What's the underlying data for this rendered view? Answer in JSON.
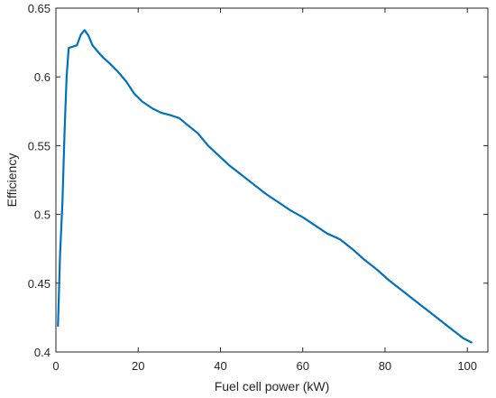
{
  "chart_data": {
    "type": "line",
    "title": "",
    "xlabel": "Fuel cell power (kW)",
    "ylabel": "Efficiency",
    "xlim": [
      0,
      105
    ],
    "ylim": [
      0.4,
      0.65
    ],
    "xticks": [
      0,
      20,
      40,
      60,
      80,
      100
    ],
    "yticks": [
      0.4,
      0.45,
      0.5,
      0.55,
      0.6,
      0.65
    ],
    "xtick_labels": [
      "0",
      "20",
      "40",
      "60",
      "80",
      "100"
    ],
    "ytick_labels": [
      "0.4",
      "0.45",
      "0.5",
      "0.55",
      "0.6",
      "0.65"
    ],
    "grid": false,
    "box": true,
    "line_color": "#0072BD",
    "series": [
      {
        "x": [
          0.5,
          1.0,
          1.6,
          2.1,
          2.6,
          3.1,
          4.1,
          5.1,
          6.1,
          7.0,
          7.9,
          8.9,
          10.0,
          11.5,
          13.0,
          15.0,
          17.0,
          19.0,
          21.0,
          23.5,
          25.5,
          28.0,
          30.0,
          32.0,
          34.5,
          37.0,
          39.5,
          42.0,
          45.0,
          48.0,
          51.0,
          54.0,
          57.0,
          60.0,
          63.0,
          66.0,
          69.0,
          72.0,
          75.0,
          78.0,
          81.0,
          84.0,
          87.0,
          90.0,
          93.0,
          96.0,
          99.0,
          101.0
        ],
        "y": [
          0.419,
          0.47,
          0.51,
          0.56,
          0.6,
          0.621,
          0.622,
          0.623,
          0.631,
          0.634,
          0.63,
          0.623,
          0.619,
          0.614,
          0.61,
          0.604,
          0.597,
          0.588,
          0.582,
          0.577,
          0.574,
          0.572,
          0.57,
          0.565,
          0.559,
          0.55,
          0.543,
          0.536,
          0.529,
          0.522,
          0.515,
          0.509,
          0.503,
          0.498,
          0.492,
          0.486,
          0.482,
          0.475,
          0.467,
          0.46,
          0.452,
          0.445,
          0.438,
          0.431,
          0.424,
          0.417,
          0.41,
          0.407
        ]
      }
    ]
  }
}
